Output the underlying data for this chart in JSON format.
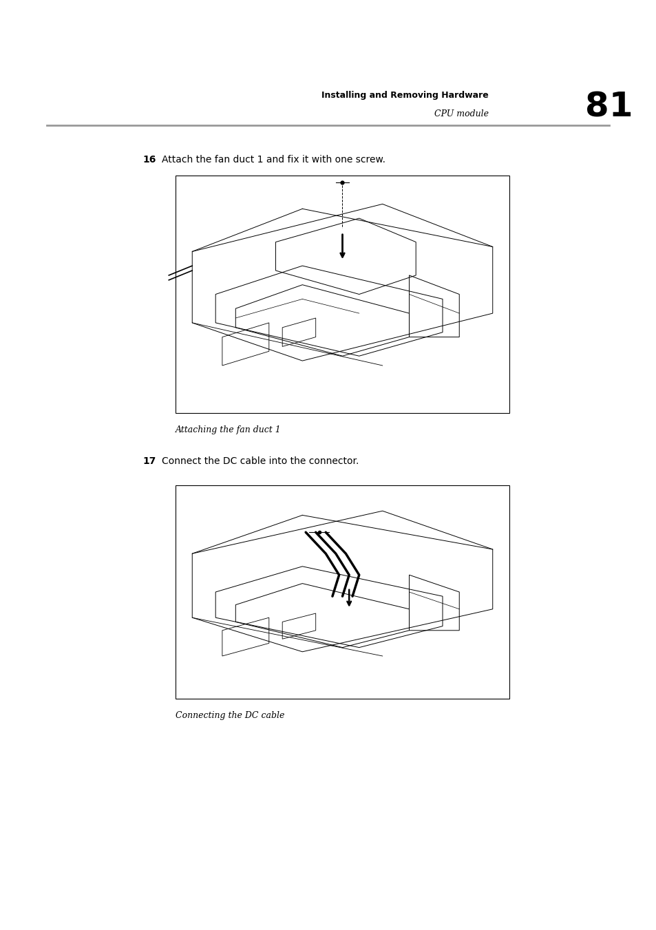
{
  "page_width": 9.54,
  "page_height": 13.51,
  "bg_color": "#ffffff",
  "header_bold_text": "Installing and Removing Hardware",
  "header_italic_text": "CPU module",
  "page_number": "81",
  "step16_number": "16",
  "step16_text": "Attach the fan duct 1 and fix it with one screw.",
  "step16_caption": "Attaching the fan duct 1",
  "step17_number": "17",
  "step17_text": "Connect the DC cable into the connector.",
  "step17_caption": "Connecting the DC cable"
}
